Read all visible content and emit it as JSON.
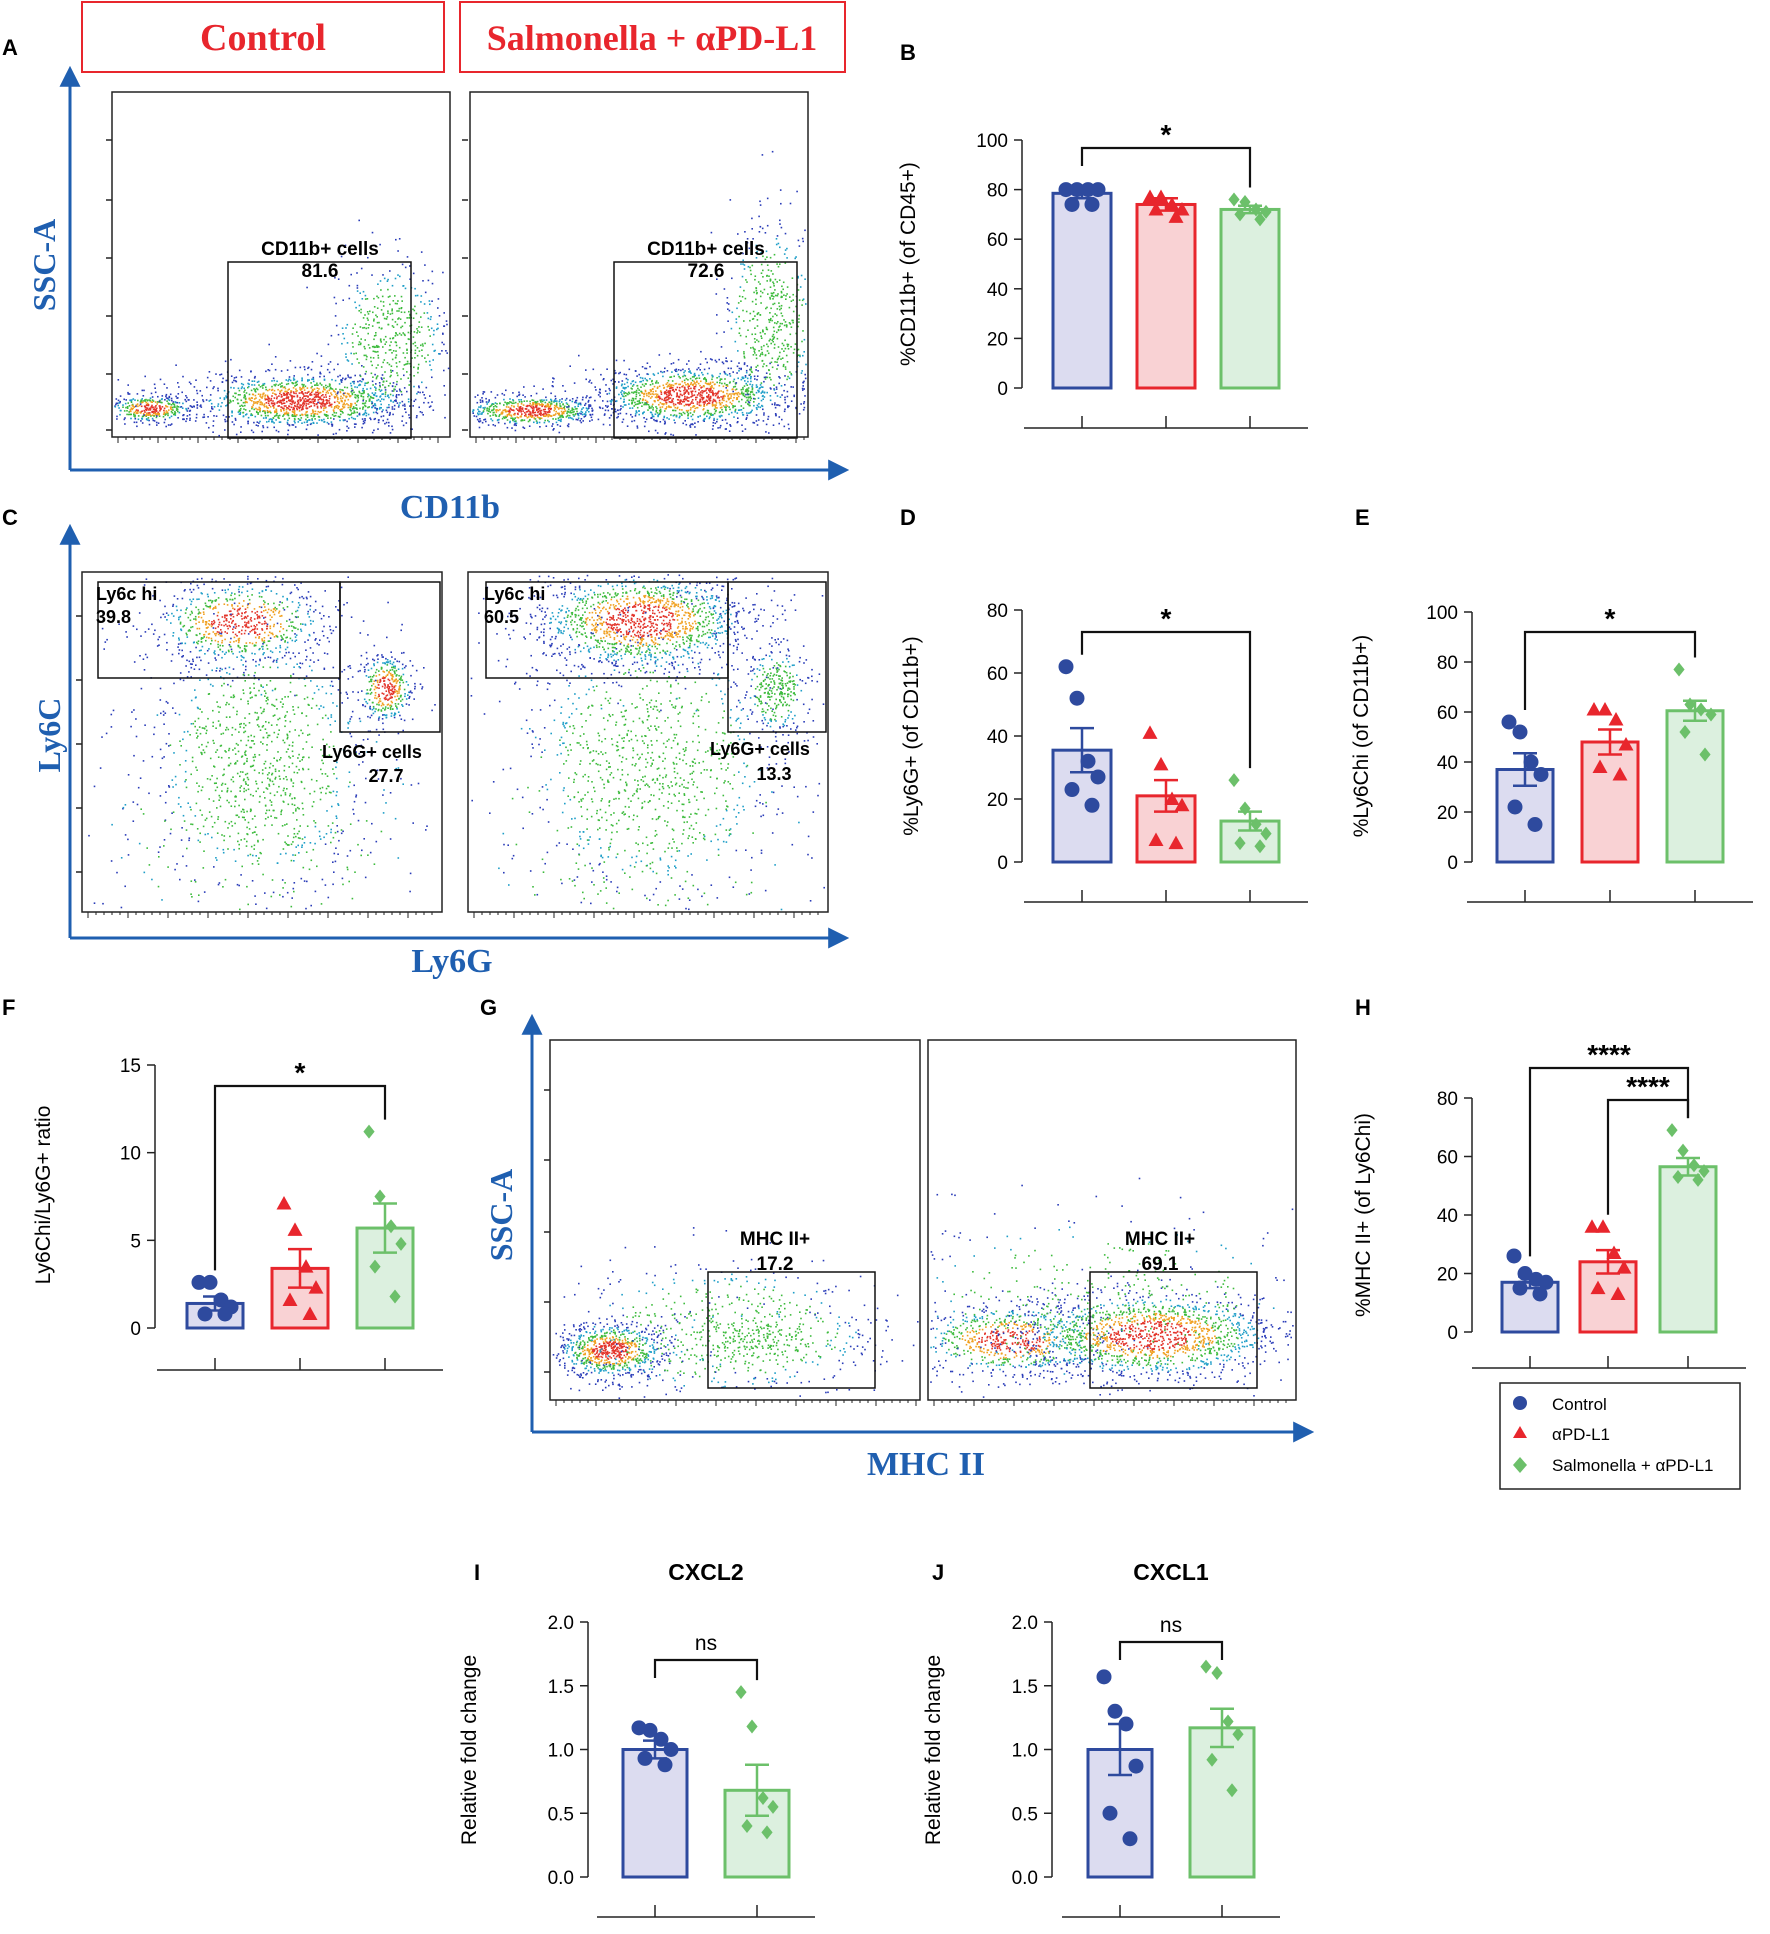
{
  "colors": {
    "control": "#2E4A9E",
    "control_fill": "#DCDCF0",
    "apdl1": "#E8262D",
    "apdl1_fill": "#F9D2D4",
    "salm": "#6CC06A",
    "salm_fill": "#DCF0DF",
    "flow_axis": "#1F5FB0",
    "header_red": "#E8262D"
  },
  "panel_letters": {
    "A": "A",
    "B": "B",
    "C": "C",
    "D": "D",
    "E": "E",
    "F": "F",
    "G": "G",
    "H": "H",
    "I": "I",
    "J": "J"
  },
  "flow": {
    "header_control": "Control",
    "header_salm": "Salmonella + αPD-L1",
    "A": {
      "ylabel": "SSC-A",
      "xlabel": "CD11b",
      "gates": [
        {
          "name": "CD11b+ cells",
          "value": "81.6"
        },
        {
          "name": "CD11b+ cells",
          "value": "72.6"
        }
      ]
    },
    "C": {
      "ylabel": "Ly6C",
      "xlabel": "Ly6G",
      "left": [
        {
          "name": "Ly6c hi",
          "value": "39.8"
        },
        {
          "name": "Ly6G+ cells",
          "value": "27.7"
        }
      ],
      "right": [
        {
          "name": "Ly6c hi",
          "value": "60.5"
        },
        {
          "name": "Ly6G+ cells",
          "value": "13.3"
        }
      ]
    },
    "G": {
      "ylabel": "SSC-A",
      "xlabel": "MHC II",
      "gates": [
        {
          "name": "MHC II+",
          "value": "17.2"
        },
        {
          "name": "MHC II+",
          "value": "69.1"
        }
      ]
    }
  },
  "legend": {
    "items": [
      {
        "label": "Control",
        "marker": "circle",
        "group": "control"
      },
      {
        "label": "αPD-L1",
        "marker": "triangle",
        "group": "apdl1"
      },
      {
        "label": "Salmonella + αPD-L1",
        "marker": "diamond",
        "group": "salm"
      }
    ]
  },
  "chart_data": [
    {
      "panel": "B",
      "type": "bar",
      "title": "",
      "ylabel": "%CD11b+ (of CD45+)",
      "ylim": [
        0,
        100
      ],
      "yticks": [
        0,
        20,
        40,
        60,
        80,
        100
      ],
      "categories": [
        "Control",
        "αPD-L1",
        "Salmonella + αPD-L1"
      ],
      "series": [
        {
          "name": "Control",
          "mean": 78.5,
          "sem": 2,
          "points": [
            80,
            80,
            80,
            80,
            74,
            74
          ]
        },
        {
          "name": "αPD-L1",
          "mean": 74,
          "sem": 2.5,
          "points": [
            77,
            77,
            74,
            72,
            72,
            69
          ]
        },
        {
          "name": "Salmonella + αPD-L1",
          "mean": 72,
          "sem": 1.5,
          "points": [
            76,
            75,
            72,
            71,
            70,
            68
          ]
        }
      ],
      "sig": [
        {
          "from": 0,
          "to": 2,
          "label": "*"
        }
      ]
    },
    {
      "panel": "D",
      "type": "bar",
      "ylabel": "%Ly6G+ (of CD11b+)",
      "ylim": [
        0,
        80
      ],
      "yticks": [
        0,
        20,
        40,
        60,
        80
      ],
      "categories": [
        "Control",
        "αPD-L1",
        "Salmonella + αPD-L1"
      ],
      "series": [
        {
          "name": "Control",
          "mean": 35.5,
          "sem": 7,
          "points": [
            62,
            52,
            32,
            27,
            23,
            18
          ]
        },
        {
          "name": "αPD-L1",
          "mean": 21,
          "sem": 5,
          "points": [
            41,
            31,
            20,
            18,
            7,
            6
          ]
        },
        {
          "name": "Salmonella + αPD-L1",
          "mean": 13,
          "sem": 3,
          "points": [
            26,
            17,
            12,
            9,
            6,
            5
          ]
        }
      ],
      "sig": [
        {
          "from": 0,
          "to": 2,
          "label": "*"
        }
      ]
    },
    {
      "panel": "E",
      "type": "bar",
      "ylabel": "%Ly6Chi (of CD11b+)",
      "ylim": [
        0,
        100
      ],
      "yticks": [
        0,
        20,
        40,
        60,
        80,
        100
      ],
      "categories": [
        "Control",
        "αPD-L1",
        "Salmonella + αPD-L1"
      ],
      "series": [
        {
          "name": "Control",
          "mean": 37,
          "sem": 6.5,
          "points": [
            56,
            52,
            40,
            35,
            22,
            15
          ]
        },
        {
          "name": "αPD-L1",
          "mean": 48,
          "sem": 5,
          "points": [
            61,
            61,
            57,
            47,
            38,
            35
          ]
        },
        {
          "name": "Salmonella + αPD-L1",
          "mean": 60.5,
          "sem": 4,
          "points": [
            77,
            63,
            61,
            59,
            52,
            43
          ]
        }
      ],
      "sig": [
        {
          "from": 0,
          "to": 2,
          "label": "*"
        }
      ]
    },
    {
      "panel": "F",
      "type": "bar",
      "ylabel": "Ly6Chi/Ly6G+ ratio",
      "ylim": [
        0,
        15
      ],
      "yticks": [
        0,
        5,
        10,
        15
      ],
      "categories": [
        "Control",
        "αPD-L1",
        "Salmonella + αPD-L1"
      ],
      "series": [
        {
          "name": "Control",
          "mean": 1.4,
          "sem": 0.4,
          "points": [
            2.6,
            2.6,
            1.6,
            1.2,
            0.8,
            0.8
          ]
        },
        {
          "name": "αPD-L1",
          "mean": 3.4,
          "sem": 1.1,
          "points": [
            7.1,
            5.6,
            3.5,
            2.3,
            1.6,
            0.8
          ]
        },
        {
          "name": "Salmonella + αPD-L1",
          "mean": 5.7,
          "sem": 1.4,
          "points": [
            11.2,
            7.5,
            5.8,
            4.8,
            3.5,
            1.8
          ]
        }
      ],
      "sig": [
        {
          "from": 0,
          "to": 2,
          "label": "*"
        }
      ]
    },
    {
      "panel": "H",
      "type": "bar",
      "ylabel": "%MHC II+ (of Ly6Chi)",
      "ylim": [
        0,
        80
      ],
      "yticks": [
        0,
        20,
        40,
        60,
        80
      ],
      "categories": [
        "Control",
        "αPD-L1",
        "Salmonella + αPD-L1"
      ],
      "series": [
        {
          "name": "Control",
          "mean": 17,
          "sem": 2,
          "points": [
            26,
            20,
            18,
            17,
            15,
            13
          ]
        },
        {
          "name": "αPD-L1",
          "mean": 24,
          "sem": 4,
          "points": [
            36,
            36,
            27,
            22,
            15,
            13
          ]
        },
        {
          "name": "Salmonella + αPD-L1",
          "mean": 56.5,
          "sem": 3,
          "points": [
            69,
            62,
            57,
            55,
            53,
            52
          ]
        }
      ],
      "sig": [
        {
          "from": 0,
          "to": 2,
          "label": "****",
          "level": 1
        },
        {
          "from": 1,
          "to": 2,
          "label": "****",
          "level": 0
        }
      ]
    },
    {
      "panel": "I",
      "type": "bar",
      "title": "CXCL2",
      "ylabel": "Relative fold change",
      "ylim": [
        0,
        2
      ],
      "yticks": [
        "0.0",
        "0.5",
        "1.0",
        "1.5",
        "2.0"
      ],
      "categories": [
        "Control",
        "Salmonella + αPD-L1"
      ],
      "series": [
        {
          "name": "Control",
          "mean": 1.0,
          "sem": 0.07,
          "points": [
            1.17,
            1.15,
            1.08,
            1.0,
            0.93,
            0.88
          ]
        },
        {
          "name": "Salmonella + αPD-L1",
          "mean": 0.68,
          "sem": 0.2,
          "points": [
            1.45,
            1.18,
            0.62,
            0.55,
            0.4,
            0.35
          ]
        }
      ],
      "sig": [
        {
          "from": 0,
          "to": 1,
          "label": "ns"
        }
      ]
    },
    {
      "panel": "J",
      "type": "bar",
      "title": "CXCL1",
      "ylabel": "Relative fold change",
      "ylim": [
        0,
        2
      ],
      "yticks": [
        "0.0",
        "0.5",
        "1.0",
        "1.5",
        "2.0"
      ],
      "categories": [
        "Control",
        "Salmonella + αPD-L1"
      ],
      "series": [
        {
          "name": "Control",
          "mean": 1.0,
          "sem": 0.2,
          "points": [
            1.57,
            1.3,
            1.2,
            0.87,
            0.5,
            0.3
          ]
        },
        {
          "name": "Salmonella + αPD-L1",
          "mean": 1.17,
          "sem": 0.15,
          "points": [
            1.65,
            1.6,
            1.22,
            1.12,
            0.92,
            0.68
          ]
        }
      ],
      "sig": [
        {
          "from": 0,
          "to": 1,
          "label": "ns"
        }
      ]
    }
  ]
}
